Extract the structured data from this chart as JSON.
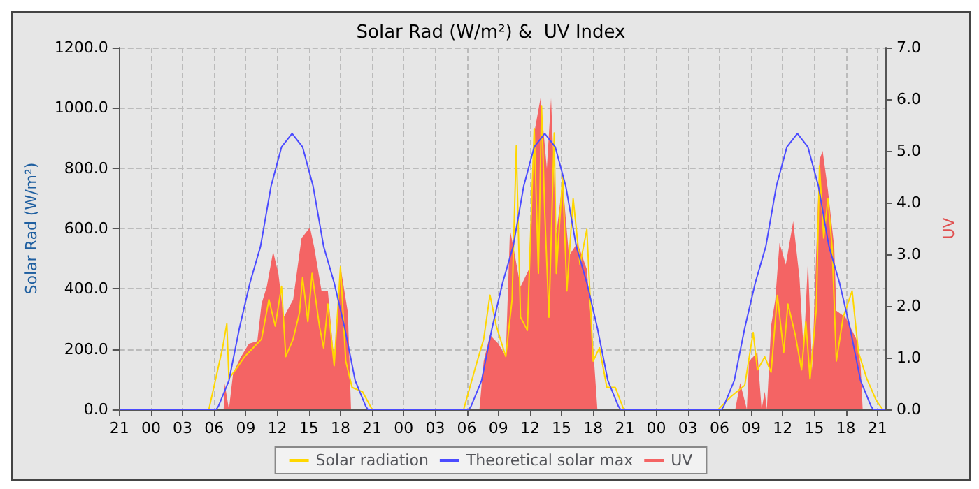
{
  "chart_data": {
    "type": "line",
    "title": "Solar Rad (W/m²) &  UV Index",
    "ylabel": "Solar Rad (W/m²)",
    "y2label": "UV",
    "xlim": [
      "--01-01T21:00",
      "--01-04T21:45"
    ],
    "xticks": [
      {
        "value": "--01-01T21:00",
        "label": "21"
      },
      {
        "value": "--01-02T00:00",
        "label": "00"
      },
      {
        "value": "--01-02T03:00",
        "label": "03"
      },
      {
        "value": "--01-02T06:00",
        "label": "06"
      },
      {
        "value": "--01-02T09:00",
        "label": "09"
      },
      {
        "value": "--01-02T12:00",
        "label": "12"
      },
      {
        "value": "--01-02T15:00",
        "label": "15"
      },
      {
        "value": "--01-02T18:00",
        "label": "18"
      },
      {
        "value": "--01-02T21:00",
        "label": "21"
      },
      {
        "value": "--01-03T00:00",
        "label": "00"
      },
      {
        "value": "--01-03T03:00",
        "label": "03"
      },
      {
        "value": "--01-03T06:00",
        "label": "06"
      },
      {
        "value": "--01-03T09:00",
        "label": "09"
      },
      {
        "value": "--01-03T12:00",
        "label": "12"
      },
      {
        "value": "--01-03T15:00",
        "label": "15"
      },
      {
        "value": "--01-03T18:00",
        "label": "18"
      },
      {
        "value": "--01-03T21:00",
        "label": "21"
      },
      {
        "value": "--01-04T00:00",
        "label": "00"
      },
      {
        "value": "--01-04T03:00",
        "label": "03"
      },
      {
        "value": "--01-04T06:00",
        "label": "06"
      },
      {
        "value": "--01-04T09:00",
        "label": "09"
      },
      {
        "value": "--01-04T12:00",
        "label": "12"
      },
      {
        "value": "--01-04T15:00",
        "label": "15"
      },
      {
        "value": "--01-04T18:00",
        "label": "18"
      },
      {
        "value": "--01-04T21:00",
        "label": "21"
      }
    ],
    "ylim": [
      0,
      1200
    ],
    "yticks": [
      {
        "value": 0,
        "label": "0.0"
      },
      {
        "value": 200,
        "label": "200.0"
      },
      {
        "value": 400,
        "label": "400.0"
      },
      {
        "value": 600,
        "label": "600.0"
      },
      {
        "value": 800,
        "label": "800.0"
      },
      {
        "value": 1000,
        "label": "1000.0"
      },
      {
        "value": 1200,
        "label": "1200.0"
      }
    ],
    "y2lim": [
      0,
      7
    ],
    "y2ticks": [
      {
        "value": 0,
        "label": "0.0"
      },
      {
        "value": 1,
        "label": "1.0"
      },
      {
        "value": 2,
        "label": "2.0"
      },
      {
        "value": 3,
        "label": "3.0"
      },
      {
        "value": 4,
        "label": "4.0"
      },
      {
        "value": 5,
        "label": "5.0"
      },
      {
        "value": 6,
        "label": "6.0"
      },
      {
        "value": 7,
        "label": "7.0"
      }
    ],
    "grid": true,
    "legend": "bottom",
    "marker": "none",
    "line_style": "solid",
    "series": [
      {
        "name": "Solar radiation",
        "color": "#ffd700",
        "x": [
          "--01-01T21:00",
          "--01-02T05:30",
          "--01-02T06:48",
          "--01-02T07:12",
          "--01-02T07:24",
          "--01-02T08:00",
          "--01-02T08:54",
          "--01-02T09:42",
          "--01-02T10:30",
          "--01-02T11:12",
          "--01-02T11:48",
          "--01-02T12:24",
          "--01-02T12:48",
          "--01-02T13:30",
          "--01-02T14:06",
          "--01-02T14:24",
          "--01-02T14:54",
          "--01-02T15:18",
          "--01-02T16:00",
          "--01-02T16:24",
          "--01-02T16:48",
          "--01-02T17:24",
          "--01-02T18:00",
          "--01-02T18:30",
          "--01-02T19:06",
          "--01-02T20:06",
          "--01-02T21:00",
          "--01-03T05:42",
          "--01-03T06:45",
          "--01-03T07:36",
          "--01-03T08:12",
          "--01-03T08:48",
          "--01-03T09:42",
          "--01-03T10:18",
          "--01-03T10:42",
          "--01-03T11:06",
          "--01-03T11:45",
          "--01-03T12:24",
          "--01-03T12:48",
          "--01-03T13:06",
          "--01-03T13:24",
          "--01-03T13:48",
          "--01-03T14:18",
          "--01-03T14:30",
          "--01-03T15:06",
          "--01-03T15:30",
          "--01-03T16:06",
          "--01-03T16:45",
          "--01-03T17:24",
          "--01-03T18:00",
          "--01-03T18:36",
          "--01-03T19:18",
          "--01-03T20:06",
          "--01-03T20:54",
          "--01-04T05:54",
          "--01-04T07:06",
          "--01-04T08:24",
          "--01-04T09:12",
          "--01-04T09:36",
          "--01-04T10:18",
          "--01-04T10:54",
          "--01-04T11:30",
          "--01-04T12:06",
          "--01-04T12:30",
          "--01-04T13:12",
          "--01-04T13:48",
          "--01-04T14:12",
          "--01-04T14:36",
          "--01-04T15:12",
          "--01-04T15:30",
          "--01-04T15:54",
          "--01-04T16:18",
          "--01-04T16:42",
          "--01-04T17:06",
          "--01-04T17:45",
          "--01-04T18:36",
          "--01-04T19:12",
          "--01-04T20:00",
          "--01-04T20:54",
          "--01-04T21:30",
          "--01-04T21:45"
        ],
        "values": [
          0,
          0,
          204,
          284,
          102,
          130,
          175,
          204,
          233,
          364,
          276,
          408,
          175,
          233,
          320,
          437,
          291,
          451,
          276,
          204,
          349,
          145,
          473,
          160,
          73,
          58,
          0,
          0,
          131,
          233,
          379,
          277,
          175,
          364,
          874,
          306,
          262,
          932,
          451,
          1005,
          655,
          306,
          917,
          451,
          772,
          393,
          699,
          480,
          597,
          160,
          204,
          73,
          73,
          0,
          0,
          43,
          80,
          255,
          131,
          174,
          123,
          378,
          189,
          349,
          247,
          131,
          291,
          101,
          334,
          808,
          568,
          699,
          538,
          160,
          306,
          393,
          189,
          101,
          29,
          0,
          0
        ]
      },
      {
        "name": "Theoretical solar max",
        "color": "#4b4bff",
        "x": [
          "--01-01T21:00",
          "--01-02T06:12",
          "--01-02T06:24",
          "--01-02T07:24",
          "--01-02T08:24",
          "--01-02T09:24",
          "--01-02T10:24",
          "--01-02T11:24",
          "--01-02T12:24",
          "--01-02T13:24",
          "--01-02T14:24",
          "--01-02T15:24",
          "--01-02T16:24",
          "--01-02T17:24",
          "--01-02T18:24",
          "--01-02T19:24",
          "--01-02T20:24",
          "--01-02T20:36",
          "--01-03T06:12",
          "--01-03T06:24",
          "--01-03T07:24",
          "--01-03T08:24",
          "--01-03T09:24",
          "--01-03T10:24",
          "--01-03T11:24",
          "--01-03T12:24",
          "--01-03T13:24",
          "--01-03T14:24",
          "--01-03T15:24",
          "--01-03T16:24",
          "--01-03T17:24",
          "--01-03T18:24",
          "--01-03T19:24",
          "--01-03T20:24",
          "--01-03T20:36",
          "--01-04T06:12",
          "--01-04T06:24",
          "--01-04T07:24",
          "--01-04T08:24",
          "--01-04T09:24",
          "--01-04T10:24",
          "--01-04T11:24",
          "--01-04T12:24",
          "--01-04T13:24",
          "--01-04T14:24",
          "--01-04T15:24",
          "--01-04T16:24",
          "--01-04T17:24",
          "--01-04T18:24",
          "--01-04T19:24",
          "--01-04T20:24",
          "--01-04T20:36",
          "--01-04T21:45"
        ],
        "values": [
          0,
          0,
          10,
          95,
          270,
          420,
          540,
          740,
          870,
          915,
          870,
          740,
          540,
          420,
          270,
          95,
          10,
          0,
          0,
          10,
          95,
          270,
          420,
          540,
          740,
          870,
          915,
          870,
          740,
          540,
          420,
          270,
          95,
          10,
          0,
          0,
          10,
          95,
          270,
          420,
          540,
          740,
          870,
          915,
          870,
          740,
          540,
          420,
          270,
          95,
          10,
          0,
          0
        ]
      },
      {
        "name": "UV",
        "type": "area",
        "axis": "y2",
        "color": "#f46464",
        "x": [
          "--01-01T21:00",
          "--01-02T06:54",
          "--01-02T07:00",
          "--01-02T07:24",
          "--01-02T07:48",
          "--01-02T08:30",
          "--01-02T09:18",
          "--01-02T10:06",
          "--01-02T10:30",
          "--01-02T11:00",
          "--01-02T11:36",
          "--01-02T12:06",
          "--01-02T12:36",
          "--01-02T13:30",
          "--01-02T14:18",
          "--01-02T15:06",
          "--01-02T15:30",
          "--01-02T16:12",
          "--01-02T16:48",
          "--01-02T17:24",
          "--01-02T18:00",
          "--01-02T18:42",
          "--01-02T19:00",
          "--01-03T07:12",
          "--01-03T07:36",
          "--01-03T08:12",
          "--01-03T09:00",
          "--01-03T09:42",
          "--01-03T10:06",
          "--01-03T10:30",
          "--01-03T11:06",
          "--01-03T11:54",
          "--01-03T12:24",
          "--01-03T13:00",
          "--01-03T13:36",
          "--01-03T14:00",
          "--01-03T14:30",
          "--01-03T15:06",
          "--01-03T15:42",
          "--01-03T16:30",
          "--01-03T17:24",
          "--01-03T18:00",
          "--01-03T18:24",
          "--01-04T07:30",
          "--01-04T07:58",
          "--01-04T08:36",
          "--01-04T08:48",
          "--01-04T09:36",
          "--01-04T10:00",
          "--01-04T10:18",
          "--01-04T10:30",
          "--01-04T10:54",
          "--01-04T11:18",
          "--01-04T11:42",
          "--01-04T12:18",
          "--01-04T13:00",
          "--01-04T13:36",
          "--01-04T14:00",
          "--01-04T14:24",
          "--01-04T14:48",
          "--01-04T15:30",
          "--01-04T15:48",
          "--01-04T16:18",
          "--01-04T16:54",
          "--01-04T17:06",
          "--01-04T17:58",
          "--01-04T19:00",
          "--01-04T19:24",
          "--01-04T19:36",
          "--01-04T21:45"
        ],
        "values": [
          0,
          0,
          0.5,
          0,
          0.7,
          1.0,
          1.27,
          1.32,
          2.04,
          2.38,
          3.05,
          2.63,
          1.78,
          2.12,
          3.31,
          3.52,
          3.14,
          2.29,
          2.29,
          0.93,
          2.76,
          1.87,
          0,
          0,
          0.93,
          1.44,
          1.27,
          1.02,
          3.48,
          3.05,
          2.37,
          2.71,
          5.34,
          6.02,
          4.66,
          6.02,
          3.39,
          4.41,
          2.97,
          3.22,
          2.71,
          1.19,
          0,
          0,
          0.51,
          0,
          0.93,
          1.1,
          0,
          0.34,
          0,
          1.61,
          2.12,
          3.22,
          2.8,
          3.64,
          2.54,
          1.1,
          2.88,
          0.76,
          4.83,
          5.0,
          4.24,
          3.14,
          1.91,
          1.78,
          1.36,
          0.85,
          0,
          0
        ]
      }
    ]
  }
}
